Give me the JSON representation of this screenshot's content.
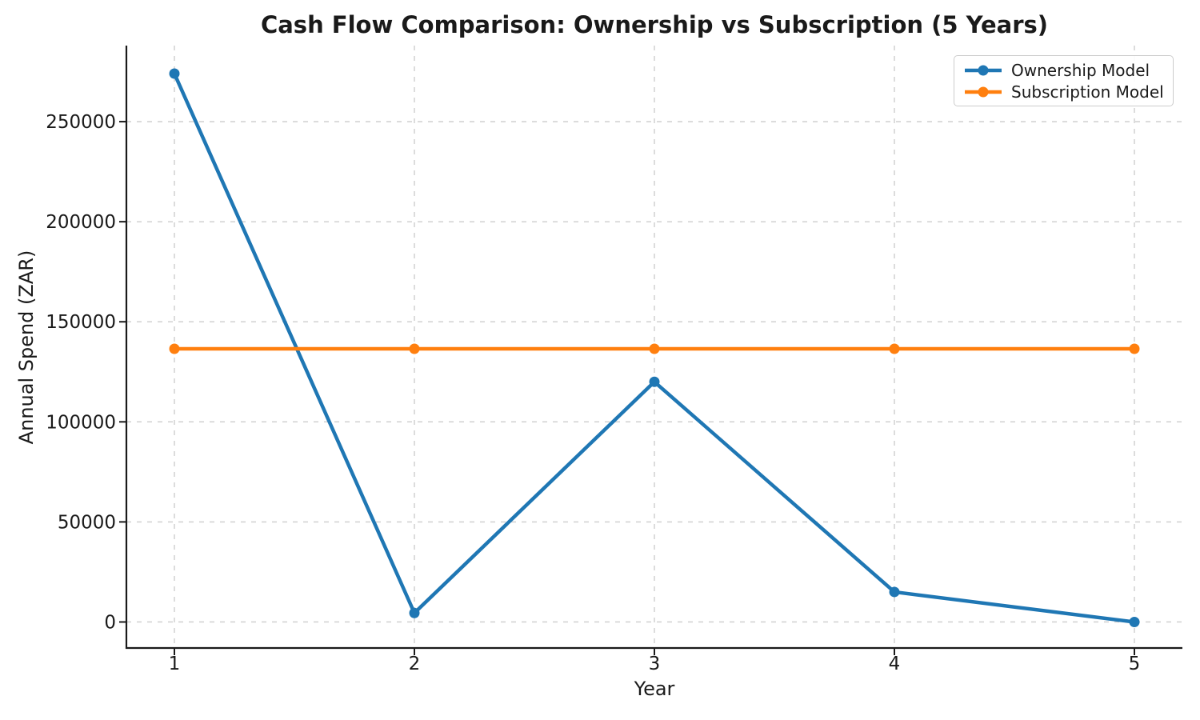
{
  "chart_data": {
    "type": "line",
    "title": "Cash Flow Comparison: Ownership vs Subscription (5 Years)",
    "xlabel": "Year",
    "ylabel": "Annual Spend (ZAR)",
    "x": [
      1,
      2,
      3,
      4,
      5
    ],
    "xtick_labels": [
      "1",
      "2",
      "3",
      "4",
      "5"
    ],
    "yticks": [
      0,
      50000,
      100000,
      150000,
      200000,
      250000
    ],
    "ytick_labels": [
      "0",
      "50000",
      "100000",
      "150000",
      "200000",
      "250000"
    ],
    "xlim": [
      0.8,
      5.2
    ],
    "ylim": [
      -13000,
      288000
    ],
    "grid": true,
    "grid_line_style": "dashed",
    "legend_position": "upper right",
    "series": [
      {
        "name": "Ownership Model",
        "color": "#1f77b4",
        "marker": "circle",
        "values": [
          274000,
          4500,
          120000,
          15000,
          0
        ]
      },
      {
        "name": "Subscription Model",
        "color": "#ff7f0e",
        "marker": "circle",
        "values": [
          136500,
          136500,
          136500,
          136500,
          136500
        ]
      }
    ],
    "colors": {
      "ownership_line": "#1f77b4",
      "subscription_line": "#ff7f0e",
      "grid": "#cccccc",
      "text": "#1a1a1a",
      "spine": "#1a1a1a",
      "background": "#ffffff",
      "legend_border": "#cccccc"
    }
  }
}
